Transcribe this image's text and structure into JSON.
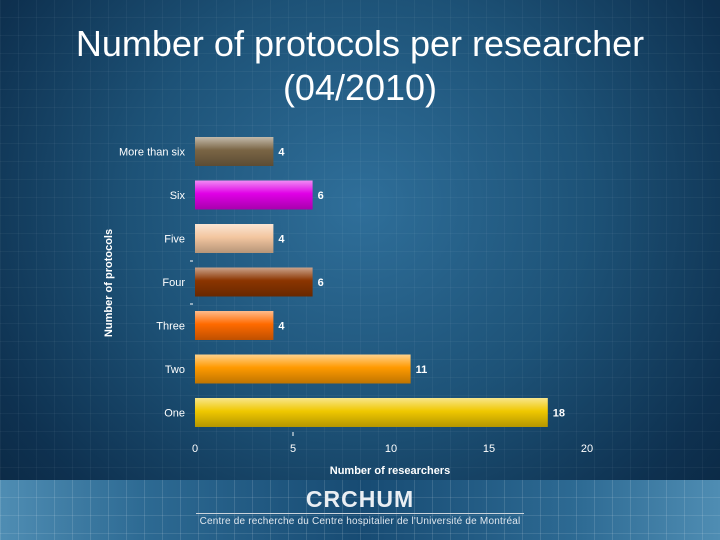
{
  "slide": {
    "title_line1": "Number of protocols per researcher",
    "title_line2": "(04/2010)"
  },
  "footer": {
    "logo": "CRCHUM",
    "subtitle": "Centre de recherche du Centre hospitalier de l'Université de Montréal"
  },
  "chart_data": {
    "type": "bar",
    "orientation": "horizontal",
    "categories": [
      "More than six",
      "Six",
      "Five",
      "Four",
      "Three",
      "Two",
      "One"
    ],
    "values": [
      4,
      6,
      4,
      6,
      4,
      11,
      18
    ],
    "colors": [
      "#7a6545",
      "#e000e6",
      "#f3c6a0",
      "#8b3500",
      "#ff6a00",
      "#ff9a00",
      "#f0c800"
    ],
    "xlabel": "Number of researchers",
    "ylabel": "Number of protocols",
    "xlim": [
      0,
      20
    ],
    "xticks": [
      0,
      5,
      10,
      15,
      20
    ],
    "grid": false,
    "legend": "none"
  }
}
